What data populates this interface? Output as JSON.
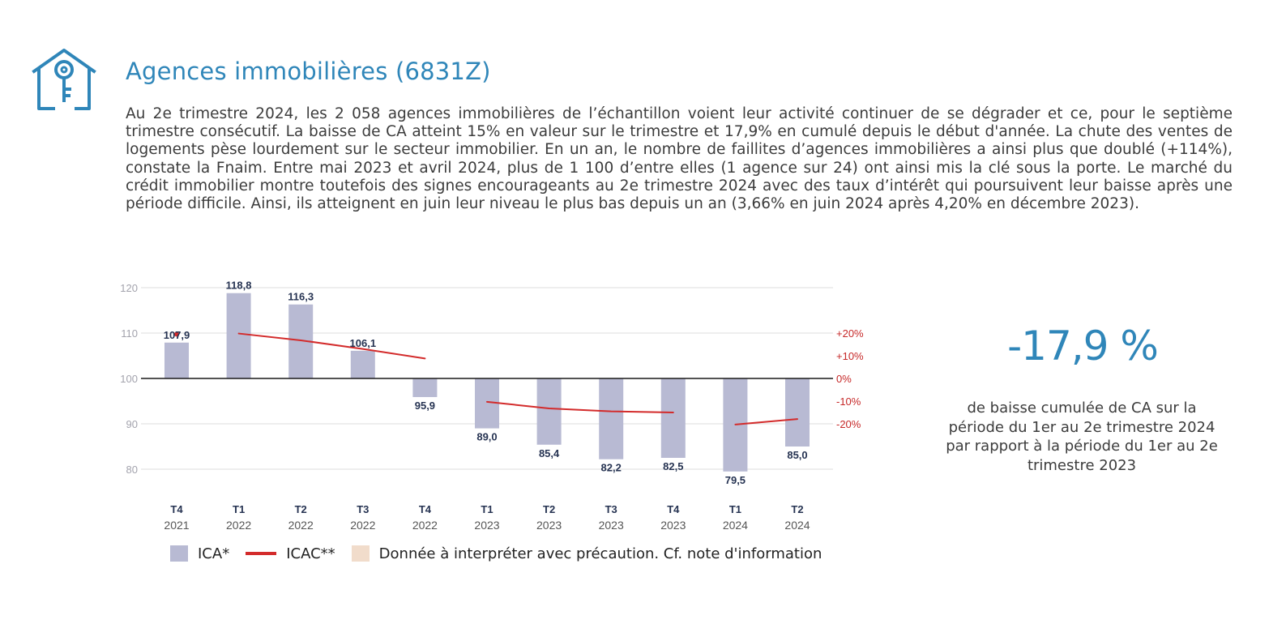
{
  "header": {
    "icon": "house-key-icon",
    "title": "Agences immobilières (6831Z)",
    "intro": "Au 2e trimestre 2024, les 2 058 agences immobilières de l’échantillon voient leur activité continuer de se dégrader et ce, pour le septième trimestre consécutif. La baisse de CA atteint 15% en valeur sur le trimestre et 17,9% en cumulé depuis le début d'année. La chute des ventes de logements pèse lourdement sur le secteur immobilier. En un an, le nombre de faillites d’agences immobilières a ainsi plus que doublé (+114%), constate la Fnaim. Entre mai 2023 et avril 2024, plus de 1 100 d’entre elles (1 agence sur 24) ont ainsi mis la clé sous la porte. Le marché du crédit immobilier montre toutefois des signes encourageants au 2e trimestre 2024 avec des taux d’intérêt qui poursuivent leur baisse après une période difficile. Ainsi, ils atteignent en juin leur niveau le plus bas depuis un an (3,66% en juin 2024 après 4,20% en décembre 2023)."
  },
  "kpi": {
    "value": "-17,9 %",
    "caption": "de baisse cumulée de CA sur la période du 1er au 2e trimestre 2024 par rapport à la période du 1er au 2e trimestre 2023"
  },
  "colors": {
    "accent": "#2f86b9",
    "bar": "#b8bad3",
    "icac_line": "#d32b2b",
    "caution": "#f1dccb",
    "right_axis": "#c62828"
  },
  "chart_data": {
    "type": "bar",
    "categories": [
      {
        "quarter": "T4",
        "year": "2021"
      },
      {
        "quarter": "T1",
        "year": "2022"
      },
      {
        "quarter": "T2",
        "year": "2022"
      },
      {
        "quarter": "T3",
        "year": "2022"
      },
      {
        "quarter": "T4",
        "year": "2022"
      },
      {
        "quarter": "T1",
        "year": "2023"
      },
      {
        "quarter": "T2",
        "year": "2023"
      },
      {
        "quarter": "T3",
        "year": "2023"
      },
      {
        "quarter": "T4",
        "year": "2023"
      },
      {
        "quarter": "T1",
        "year": "2024"
      },
      {
        "quarter": "T2",
        "year": "2024"
      }
    ],
    "series": [
      {
        "name": "ICA*",
        "kind": "bar",
        "axis": "left",
        "values": [
          107.9,
          118.8,
          116.3,
          106.1,
          95.9,
          89.0,
          85.4,
          82.2,
          82.5,
          79.5,
          85.0
        ],
        "labels": [
          "107,9",
          "118,8",
          "116,3",
          "106,1",
          "95,9",
          "89,0",
          "85,4",
          "82,2",
          "82,5",
          "79,5",
          "85,0"
        ]
      },
      {
        "name": "ICAC**",
        "kind": "line",
        "axis": "right",
        "segments": [
          {
            "x": [
              "T4 2021"
            ],
            "y": [
              19.5
            ],
            "points": [
              [
                0,
                19.5
              ]
            ]
          },
          {
            "points": [
              [
                1,
                19.8
              ],
              [
                2,
                16.8
              ],
              [
                3,
                13.0
              ],
              [
                4,
                8.8
              ]
            ]
          },
          {
            "points": [
              [
                5,
                -10.3
              ],
              [
                6,
                -13.2
              ],
              [
                7,
                -14.5
              ],
              [
                8,
                -15.0
              ]
            ]
          },
          {
            "points": [
              [
                9,
                -20.3
              ],
              [
                10,
                -17.9
              ]
            ]
          }
        ]
      }
    ],
    "left_axis": {
      "ylim": [
        79,
        121
      ],
      "ticks": [
        80,
        90,
        100,
        110,
        120
      ],
      "baseline": 100
    },
    "right_axis": {
      "ticks": [
        "+20%",
        "+10%",
        "0%",
        "-10%",
        "-20%"
      ],
      "tick_values": [
        20,
        10,
        0,
        -10,
        -20
      ]
    },
    "legend": [
      {
        "swatch": "bar",
        "label": "ICA*"
      },
      {
        "swatch": "line",
        "label": "ICAC**"
      },
      {
        "swatch": "caution",
        "label": "Donnée à interpréter avec précaution. Cf. note d'information"
      }
    ],
    "legend_position": "bottom",
    "grid": true
  }
}
